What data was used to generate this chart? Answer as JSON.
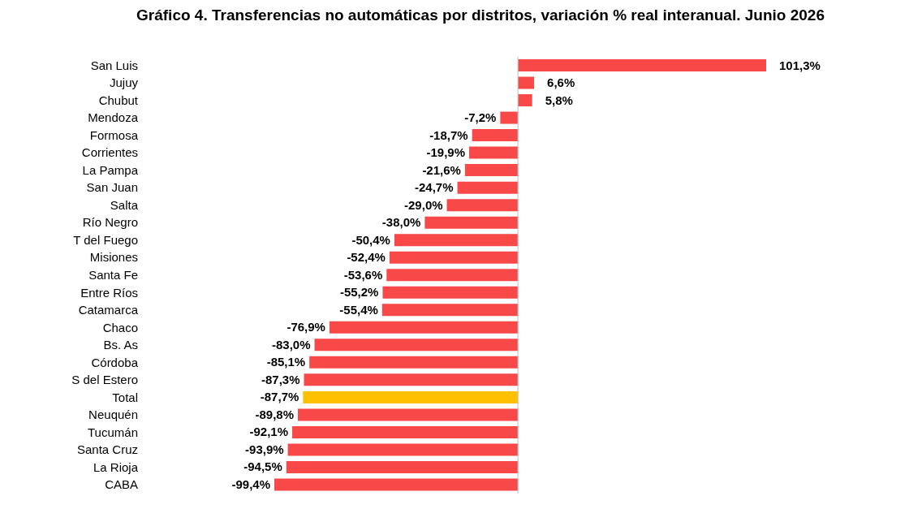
{
  "chart_data": {
    "type": "bar",
    "orientation": "horizontal",
    "title": "Gráfico 4. Transferencias no automáticas por distritos, variación % real interanual. Junio 2026",
    "categories": [
      "San Luis",
      "Jujuy",
      "Chubut",
      "Mendoza",
      "Formosa",
      "Corrientes",
      "La Pampa",
      "San Juan",
      "Salta",
      "Río Negro",
      "T del Fuego",
      "Misiones",
      "Santa Fe",
      "Entre Ríos",
      "Catamarca",
      "Chaco",
      "Bs. As",
      "Córdoba",
      "S del Estero",
      "Total",
      "Neuquén",
      "Tucumán",
      "Santa Cruz",
      "La Rioja",
      "CABA"
    ],
    "values": [
      101.3,
      6.6,
      5.8,
      -7.2,
      -18.7,
      -19.9,
      -21.6,
      -24.7,
      -29.0,
      -38.0,
      -50.4,
      -52.4,
      -53.6,
      -55.2,
      -55.4,
      -76.9,
      -83.0,
      -85.1,
      -87.3,
      -87.7,
      -89.8,
      -92.1,
      -93.9,
      -94.5,
      -99.4
    ],
    "colors": [
      "#f84848",
      "#f84848",
      "#f84848",
      "#f84848",
      "#f84848",
      "#f84848",
      "#f84848",
      "#f84848",
      "#f84848",
      "#f84848",
      "#f84848",
      "#f84848",
      "#f84848",
      "#f84848",
      "#f84848",
      "#f84848",
      "#f84848",
      "#f84848",
      "#f84848",
      "#ffc000",
      "#f84848",
      "#f84848",
      "#f84848",
      "#f84848",
      "#f84848"
    ],
    "value_labels": [
      "101,3%",
      "6,6%",
      "5,8%",
      "-7,2%",
      "-18,7%",
      "-19,9%",
      "-21,6%",
      "-24,7%",
      "-29,0%",
      "-38,0%",
      "-50,4%",
      "-52,4%",
      "-53,6%",
      "-55,2%",
      "-55,4%",
      "-76,9%",
      "-83,0%",
      "-85,1%",
      "-87,3%",
      "-87,7%",
      "-89,8%",
      "-92,1%",
      "-93,9%",
      "-94,5%",
      "-99,4%"
    ]
  }
}
